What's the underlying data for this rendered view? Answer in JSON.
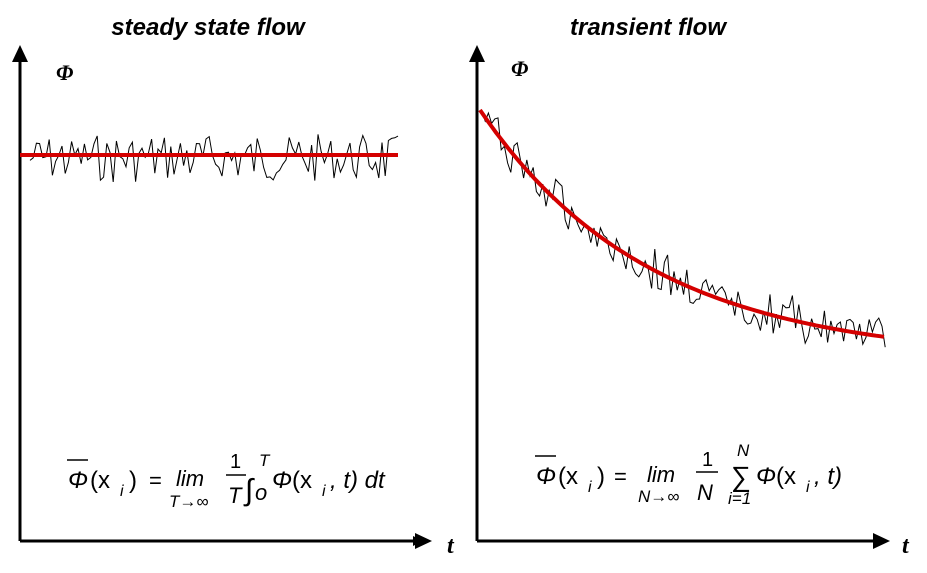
{
  "panels": [
    {
      "id": "steady",
      "title": "steady state flow",
      "y_axis_label": "Φ",
      "x_axis_label": "t",
      "mean_line": "constant",
      "equation": {
        "lhs_symbol": "Φ",
        "lhs_arg": "(x",
        "lhs_sub": "i",
        "lhs_close": ")",
        "equals": "=",
        "lim": "lim",
        "lim_sub": "T→∞",
        "frac_num": "1",
        "frac_den": "T",
        "integral": "∫",
        "int_upper": "T",
        "int_lower": "o",
        "body_symbol": "Φ",
        "body_arg": "(x",
        "body_sub": "i",
        "body_rest": ", t) dt"
      }
    },
    {
      "id": "transient",
      "title": "transient flow",
      "y_axis_label": "Φ",
      "x_axis_label": "t",
      "mean_line": "decaying",
      "equation": {
        "lhs_symbol": "Φ",
        "lhs_arg": "(x",
        "lhs_sub": "i",
        "lhs_close": ")",
        "equals": "=",
        "lim": "lim",
        "lim_sub": "N→∞",
        "frac_num": "1",
        "frac_den": "N",
        "sum": "∑",
        "sum_upper": "N",
        "sum_lower": "i=1",
        "body_symbol": "Φ",
        "body_arg": "(x",
        "body_sub": "i",
        "body_rest": ", t)"
      }
    }
  ],
  "colors": {
    "axis": "#000000",
    "mean_line": "#d40000",
    "signal": "#000000"
  }
}
